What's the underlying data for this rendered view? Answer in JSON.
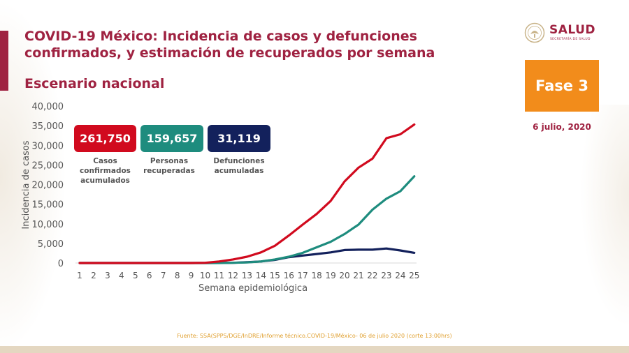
{
  "title": "COVID-19 México: Incidencia de casos y defunciones confirmados, y estimación de recuperados por semana",
  "subtitle": "Escenario nacional",
  "logo": {
    "text": "SALUD",
    "subtext": "SECRETARÍA DE SALUD",
    "icon": "eagle-seal-icon"
  },
  "phase_badge": "Fase 3",
  "date": "6 julio, 2020",
  "stats": [
    {
      "value": "261,750",
      "label": "Casos confirmados acumulados",
      "color": "#d10a1e"
    },
    {
      "value": "159,657",
      "label": "Personas recuperadas",
      "color": "#1e8c7e"
    },
    {
      "value": "31,119",
      "label": "Defunciones acumuladas",
      "color": "#13215c"
    }
  ],
  "footer": "Fuente: SSA(SPPS/DGE/InDRE/Informe técnico.COVID-19/México- 06 de julio 2020 (corte 13:00hrs)",
  "colors": {
    "brand": "#9f2241",
    "accent": "#f28c1b",
    "grid": "#cccccc"
  },
  "chart_data": {
    "type": "line",
    "xlabel": "Semana epidemiológica",
    "ylabel": "Incidencia de casos",
    "x": [
      1,
      2,
      3,
      4,
      5,
      6,
      7,
      8,
      9,
      10,
      11,
      12,
      13,
      14,
      15,
      16,
      17,
      18,
      19,
      20,
      21,
      22,
      23,
      24,
      25
    ],
    "ylim": [
      0,
      40000
    ],
    "yticks": [
      "0",
      "5,000",
      "10,000",
      "15,000",
      "20,000",
      "25,000",
      "30,000",
      "35,000",
      "40,000"
    ],
    "grid": false,
    "legend": "none",
    "series": [
      {
        "color": "#d10a1e",
        "values": [
          0,
          0,
          0,
          0,
          0,
          0,
          0,
          0,
          5,
          60,
          400,
          900,
          1600,
          2700,
          4400,
          7000,
          9800,
          12500,
          15800,
          20800,
          24300,
          26600,
          31800,
          32800,
          35300
        ]
      },
      {
        "color": "#1e8c7e",
        "values": [
          0,
          0,
          0,
          0,
          0,
          0,
          0,
          0,
          0,
          0,
          0,
          50,
          150,
          400,
          900,
          1600,
          2600,
          4000,
          5400,
          7400,
          9800,
          13600,
          16400,
          18300,
          22100
        ]
      },
      {
        "color": "#13215c",
        "values": [
          0,
          0,
          0,
          0,
          0,
          0,
          0,
          0,
          0,
          0,
          20,
          60,
          200,
          400,
          800,
          1500,
          1900,
          2300,
          2700,
          3300,
          3400,
          3400,
          3700,
          3200,
          2600
        ]
      }
    ]
  }
}
